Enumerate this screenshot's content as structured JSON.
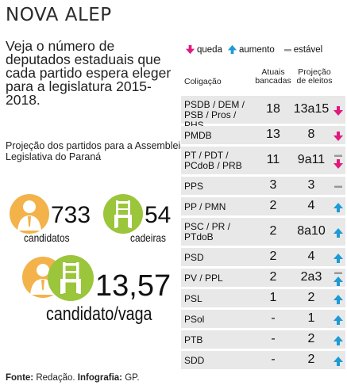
{
  "header": {
    "title": "NOVA ALEP"
  },
  "intro": {
    "text": "Veja o número de deputados estaduais que cada partido espera eleger para a legislatura 2015-2018.",
    "subtitle": "Projeção dos partidos para a Assembleia Legislativa do Paraná"
  },
  "stats": {
    "candidates_value": "733",
    "candidates_label": "candidatos",
    "seats_value": "54",
    "seats_label": "cadeiras",
    "ratio_value": "13,57",
    "ratio_label": "candidato/vaga"
  },
  "source": {
    "label": "Fonte:",
    "source_value": "Redação.",
    "infographic_label": "Infografia:",
    "infographic_value": "GP."
  },
  "legend": {
    "down": "queda",
    "up": "aumento",
    "stable": "estável"
  },
  "colors": {
    "down": "#e0197d",
    "up": "#1e9ad6",
    "stable": "#999999",
    "orange": "#f3b24a",
    "green": "#9bc53b",
    "row_bg": "#e8e8e8"
  },
  "table": {
    "headers": {
      "coalition": "Coligação",
      "current": "Atuais bancadas",
      "projection": "Projeção de eleitos"
    },
    "rows": [
      {
        "name": "PSDB / DEM / PSB / Pros / PHS",
        "current": "18",
        "projection": "13a15",
        "trend": [
          "down"
        ]
      },
      {
        "name": "PMDB",
        "current": "13",
        "projection": "8",
        "trend": [
          "down"
        ]
      },
      {
        "name": "PT / PDT / PCdoB / PRB",
        "current": "11",
        "projection": "9a11",
        "trend": [
          "stable",
          "down"
        ]
      },
      {
        "name": "PPS",
        "current": "3",
        "projection": "3",
        "trend": [
          "stable"
        ]
      },
      {
        "name": "PP / PMN",
        "current": "2",
        "projection": "4",
        "trend": [
          "up"
        ]
      },
      {
        "name": "PSC / PR / PTdoB",
        "current": "2",
        "projection": "8a10",
        "trend": [
          "up"
        ]
      },
      {
        "name": "PSD",
        "current": "2",
        "projection": "4",
        "trend": [
          "up"
        ]
      },
      {
        "name": "PV / PPL",
        "current": "2",
        "projection": "2a3",
        "trend": [
          "stable",
          "up"
        ]
      },
      {
        "name": "PSL",
        "current": "1",
        "projection": "2",
        "trend": [
          "up"
        ]
      },
      {
        "name": "PSol",
        "current": "-",
        "projection": "1",
        "trend": [
          "up"
        ]
      },
      {
        "name": "PTB",
        "current": "-",
        "projection": "2",
        "trend": [
          "up"
        ]
      },
      {
        "name": "SDD",
        "current": "-",
        "projection": "2",
        "trend": [
          "up"
        ]
      }
    ]
  }
}
